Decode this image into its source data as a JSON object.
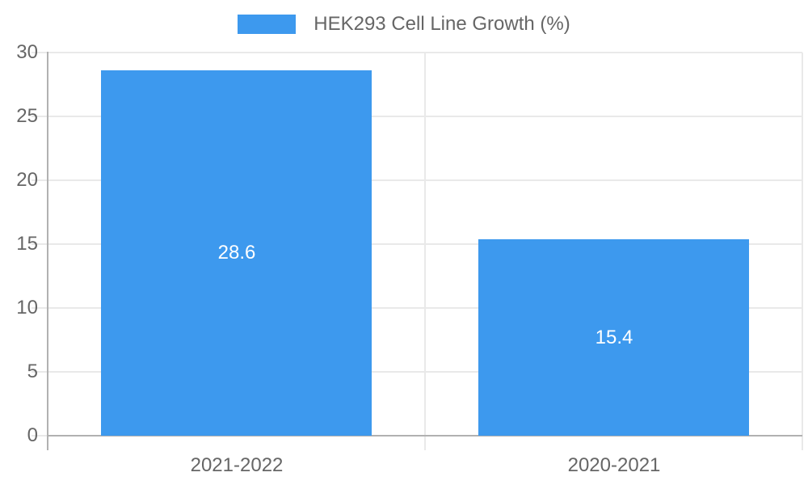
{
  "chart_data": {
    "type": "bar",
    "title": "",
    "categories": [
      "2021-2022",
      "2020-2021"
    ],
    "series": [
      {
        "name": "HEK293 Cell Line Growth (%)",
        "values": [
          28.6,
          15.4
        ]
      }
    ],
    "value_labels": [
      "28.6",
      "15.4"
    ],
    "ylim": [
      0,
      30
    ],
    "yticks": [
      0,
      5,
      10,
      15,
      20,
      25,
      30
    ],
    "grid": true,
    "legend_position": "top",
    "colors": {
      "bar": "#3d99ee",
      "bar_value_text": "#ffffff",
      "gridline": "#e9e9e9",
      "axis_line": "#b1b1b1",
      "tick_text": "#666666",
      "legend_text": "#666666",
      "background": "#ffffff"
    }
  }
}
